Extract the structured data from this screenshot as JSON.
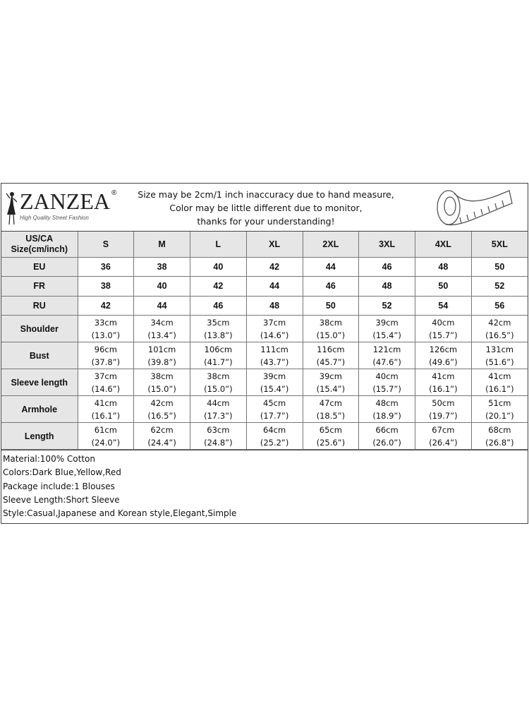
{
  "brand": {
    "name": "ZANZEA",
    "registered": "®",
    "tagline": "High Quality Street Fashion"
  },
  "notice": [
    "Size may be 2cm/1 inch inaccuracy due to hand measure,",
    "Color may be little different due to monitor,",
    "thanks for your understanding!"
  ],
  "icons": {
    "logo": "fashion-figure-icon",
    "measure": "tape-measure-icon"
  },
  "table": {
    "header": {
      "label_line1": "US/CA",
      "label_line2": "Size(cm/inch)",
      "sizes": [
        "S",
        "M",
        "L",
        "XL",
        "2XL",
        "3XL",
        "4XL",
        "5XL"
      ]
    },
    "alt_sizes": [
      {
        "label": "EU",
        "values": [
          "36",
          "38",
          "40",
          "42",
          "44",
          "46",
          "48",
          "50"
        ]
      },
      {
        "label": "FR",
        "values": [
          "38",
          "40",
          "42",
          "44",
          "46",
          "48",
          "50",
          "52"
        ]
      },
      {
        "label": "RU",
        "values": [
          "42",
          "44",
          "46",
          "48",
          "50",
          "52",
          "54",
          "56"
        ]
      }
    ],
    "measurements": [
      {
        "label": "Shoulder",
        "cm": [
          "33cm",
          "34cm",
          "35cm",
          "37cm",
          "38cm",
          "39cm",
          "40cm",
          "42cm"
        ],
        "inch": [
          "(13.0”)",
          "(13.4”)",
          "(13.8”)",
          "(14.6”)",
          "(15.0”)",
          "(15.4”)",
          "(15.7”)",
          "(16.5”)"
        ]
      },
      {
        "label": "Bust",
        "cm": [
          "96cm",
          "101cm",
          "106cm",
          "111cm",
          "116cm",
          "121cm",
          "126cm",
          "131cm"
        ],
        "inch": [
          "(37.8”)",
          "(39.8”)",
          "(41.7”)",
          "(43.7”)",
          "(45.7”)",
          "(47.6”)",
          "(49.6”)",
          "(51.6”)"
        ]
      },
      {
        "label": "Sleeve length",
        "cm": [
          "37cm",
          "38cm",
          "38cm",
          "39cm",
          "39cm",
          "40cm",
          "41cm",
          "41cm"
        ],
        "inch": [
          "(14.6”)",
          "(15.0”)",
          "(15.0”)",
          "(15.4”)",
          "(15.4”)",
          "(15.7”)",
          "(16.1”)",
          "(16.1”)"
        ]
      },
      {
        "label": "Armhole",
        "cm": [
          "41cm",
          "42cm",
          "44cm",
          "45cm",
          "47cm",
          "48cm",
          "50cm",
          "51cm"
        ],
        "inch": [
          "(16.1”)",
          "(16.5”)",
          "(17.3”)",
          "(17.7”)",
          "(18.5”)",
          "(18.9”)",
          "(19.7”)",
          "(20.1”)"
        ]
      },
      {
        "label": "Length",
        "cm": [
          "61cm",
          "62cm",
          "63cm",
          "64cm",
          "65cm",
          "66cm",
          "67cm",
          "68cm"
        ],
        "inch": [
          "(24.0”)",
          "(24.4”)",
          "(24.8”)",
          "(25.2”)",
          "(25.6”)",
          "(26.0”)",
          "(26.4”)",
          "(26.8”)"
        ]
      }
    ]
  },
  "notes": [
    "Material:100% Cotton",
    "Colors:Dark Blue,Yellow,Red",
    "Package include:1 Blouses",
    "Sleeve Length:Short Sleeve",
    "Style:Casual,Japanese and Korean style,Elegant,Simple"
  ]
}
